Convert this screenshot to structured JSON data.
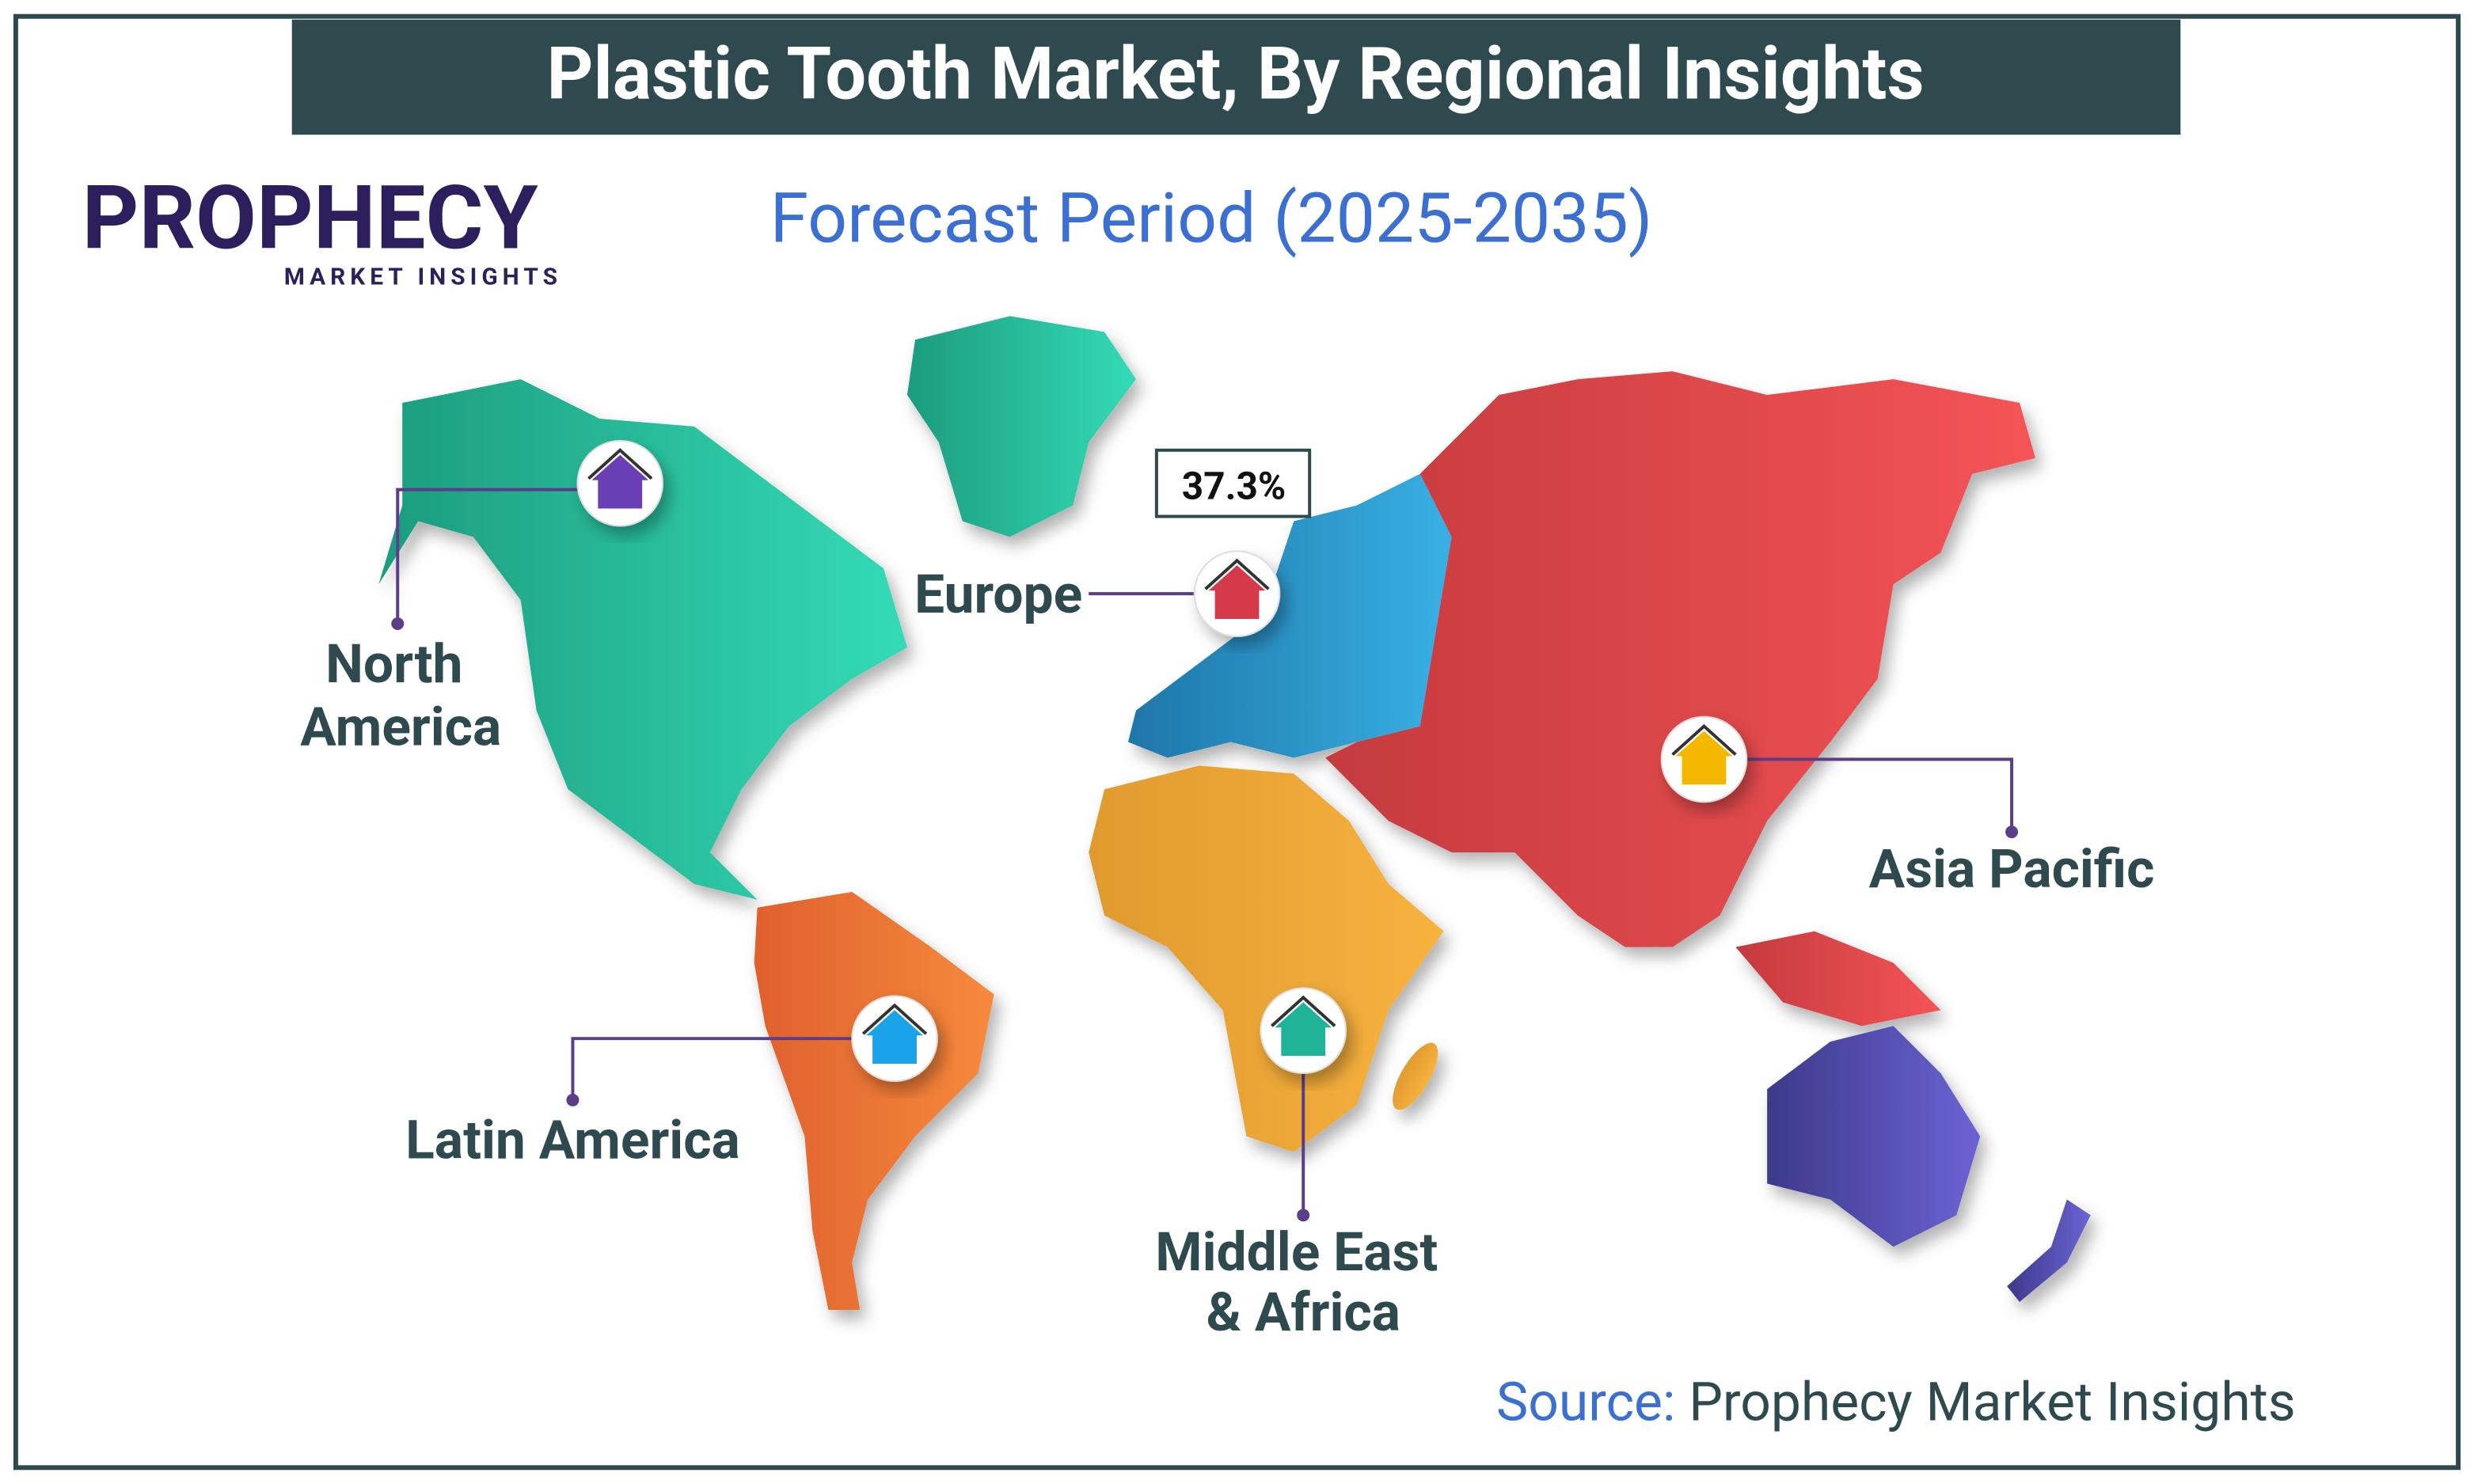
{
  "header": {
    "title": "Plastic Tooth Market, By Regional Insights"
  },
  "logo": {
    "brand": "PROPHECY",
    "tagline": "MARKET INSIGHTS"
  },
  "subtitle": "Forecast Period (2025-2035)",
  "regions": [
    {
      "name_lines": [
        "North",
        "America"
      ]
    },
    {
      "name_lines": [
        "Europe"
      ],
      "share": "37.3%"
    },
    {
      "name_lines": [
        "Asia Pacific"
      ]
    },
    {
      "name_lines": [
        "Latin America"
      ]
    },
    {
      "name_lines": [
        "Middle East",
        "& Africa"
      ]
    }
  ],
  "source": {
    "label": "Source:",
    "text": "Prophecy Market Insights"
  }
}
